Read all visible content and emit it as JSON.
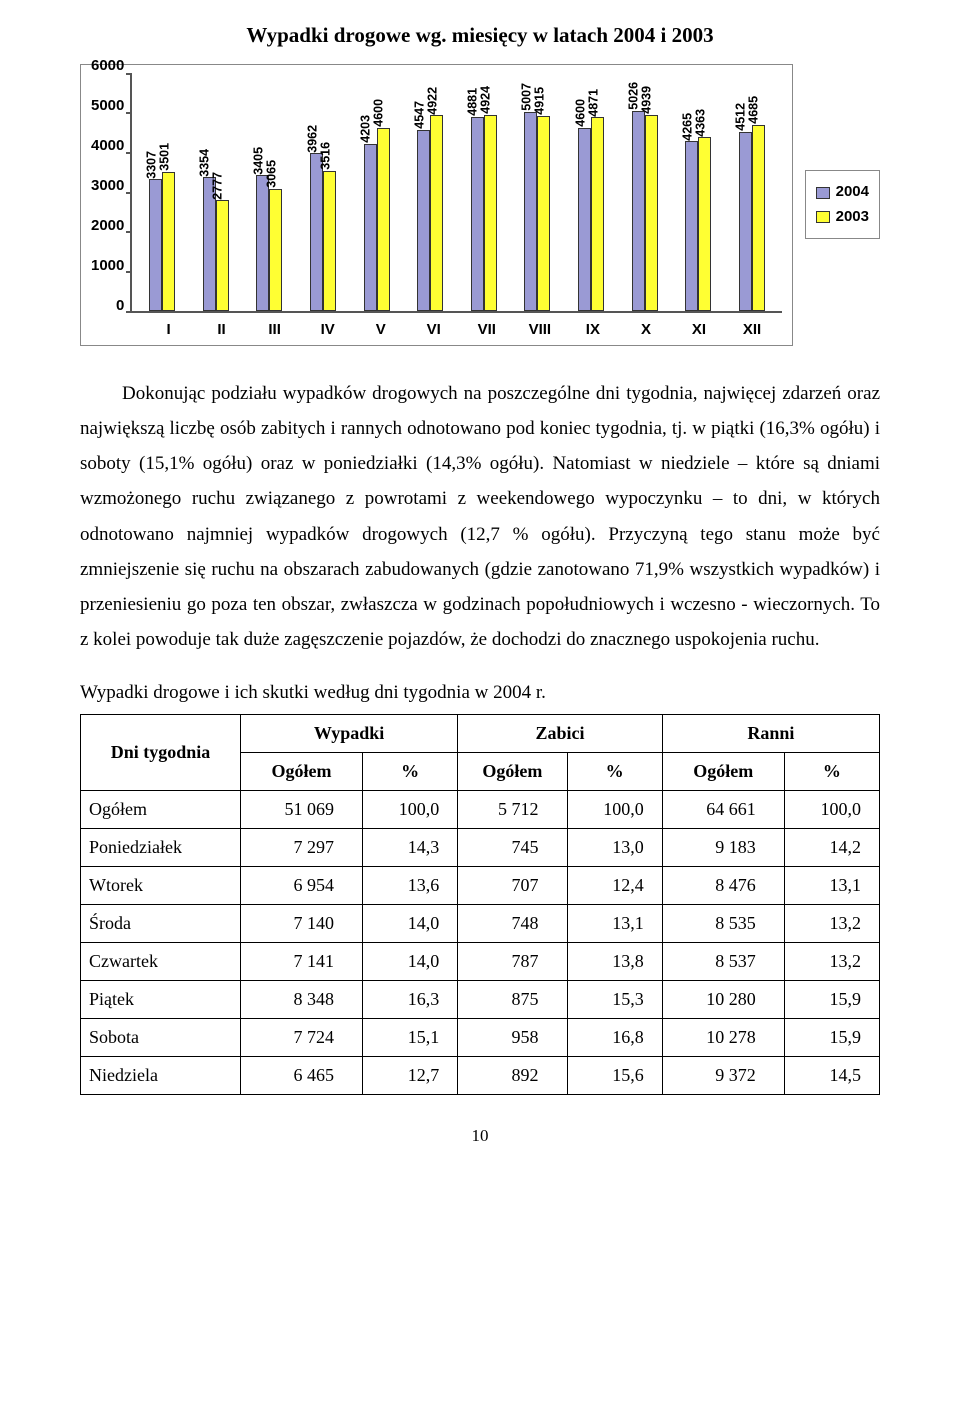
{
  "chart": {
    "title": "Wypadki drogowe wg. miesięcy w latach 2004 i 2003",
    "ymax": 6000,
    "yticks": [
      6000,
      5000,
      4000,
      3000,
      2000,
      1000,
      0
    ],
    "categories": [
      "I",
      "II",
      "III",
      "IV",
      "V",
      "VI",
      "VII",
      "VIII",
      "IX",
      "X",
      "XI",
      "XII"
    ],
    "series": [
      {
        "name": "2004",
        "color": "#9a9ad4",
        "values": [
          3307,
          3354,
          3405,
          3962,
          4203,
          4547,
          4881,
          5007,
          4600,
          5026,
          4265,
          4512
        ]
      },
      {
        "name": "2003",
        "color": "#ffff33",
        "values": [
          3501,
          2777,
          3065,
          3516,
          4600,
          4922,
          4924,
          4915,
          4871,
          4939,
          4363,
          4685
        ]
      }
    ],
    "legend_border": "#888888",
    "bar_border": "#333333",
    "axis_color": "#555555",
    "label_font": "Arial"
  },
  "paragraph1": "Dokonując podziału wypadków drogowych na poszczególne dni tygodnia, najwięcej zdarzeń oraz największą liczbę osób zabitych i rannych odnotowano pod koniec tygodnia, tj. w piątki (16,3% ogółu) i soboty (15,1% ogółu) oraz w poniedziałki (14,3% ogółu). Natomiast w niedziele – które są dniami wzmożonego ruchu związanego z powrotami z weekendowego wypoczynku – to dni, w których odnotowano najmniej wypadków drogowych (12,7 % ogółu). Przyczyną tego stanu może być zmniejszenie się ruchu na obszarach zabudowanych (gdzie zanotowano 71,9% wszystkich wypadków) i przeniesieniu go poza ten obszar, zwłaszcza w godzinach popołudniowych i wczesno - wieczornych. To z kolei powoduje tak duże zagęszczenie pojazdów, że dochodzi do znacznego uspokojenia ruchu.",
  "table": {
    "caption": "Wypadki drogowe i ich skutki według dni tygodnia w 2004 r.",
    "row_header": "Dni tygodnia",
    "groups": [
      "Wypadki",
      "Zabici",
      "Ranni"
    ],
    "subcols": [
      "Ogółem",
      "%"
    ],
    "rows": [
      {
        "label": "Ogółem",
        "cells": [
          "51 069",
          "100,0",
          "5 712",
          "100,0",
          "64 661",
          "100,0"
        ]
      },
      {
        "label": "Poniedziałek",
        "cells": [
          "7 297",
          "14,3",
          "745",
          "13,0",
          "9 183",
          "14,2"
        ]
      },
      {
        "label": "Wtorek",
        "cells": [
          "6 954",
          "13,6",
          "707",
          "12,4",
          "8 476",
          "13,1"
        ]
      },
      {
        "label": "Środa",
        "cells": [
          "7 140",
          "14,0",
          "748",
          "13,1",
          "8 535",
          "13,2"
        ]
      },
      {
        "label": "Czwartek",
        "cells": [
          "7 141",
          "14,0",
          "787",
          "13,8",
          "8 537",
          "13,2"
        ]
      },
      {
        "label": "Piątek",
        "cells": [
          "8 348",
          "16,3",
          "875",
          "15,3",
          "10 280",
          "15,9"
        ]
      },
      {
        "label": "Sobota",
        "cells": [
          "7 724",
          "15,1",
          "958",
          "16,8",
          "10 278",
          "15,9"
        ]
      },
      {
        "label": "Niedziela",
        "cells": [
          "6 465",
          "12,7",
          "892",
          "15,6",
          "9 372",
          "14,5"
        ]
      }
    ]
  },
  "page_number": "10"
}
